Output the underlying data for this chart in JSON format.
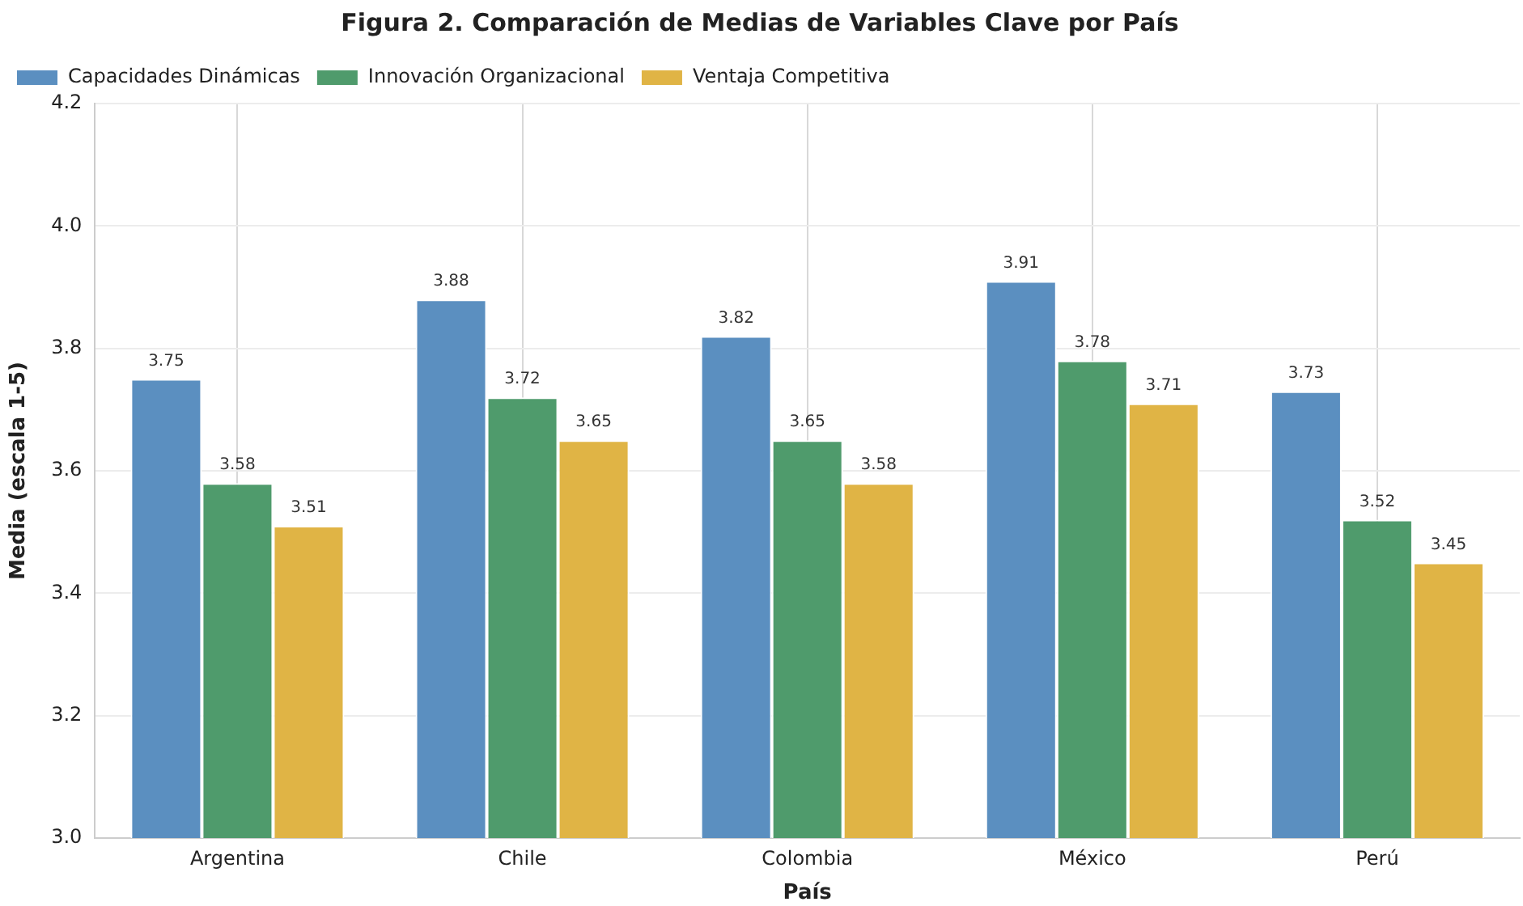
{
  "chart_data": {
    "type": "bar",
    "title": "Figura 2. Comparación de Medias de Variables Clave por País",
    "xlabel": "País",
    "ylabel": "Media (escala 1-5)",
    "categories": [
      "Argentina",
      "Chile",
      "Colombia",
      "México",
      "Perú"
    ],
    "series": [
      {
        "name": "Capacidades Dinámicas",
        "color": "#5b8fc0",
        "values": [
          3.75,
          3.88,
          3.82,
          3.91,
          3.73
        ]
      },
      {
        "name": "Innovación Organizacional",
        "color": "#4f9b6c",
        "values": [
          3.58,
          3.72,
          3.65,
          3.78,
          3.52
        ]
      },
      {
        "name": "Ventaja Competitiva",
        "color": "#e0b445",
        "values": [
          3.51,
          3.65,
          3.58,
          3.71,
          3.45
        ]
      }
    ],
    "ylim": [
      3.0,
      4.2
    ],
    "yticks": [
      {
        "value": 3.0,
        "label": "3.0"
      },
      {
        "value": 3.2,
        "label": "3.2"
      },
      {
        "value": 3.4,
        "label": "3.4"
      },
      {
        "value": 3.6,
        "label": "3.6"
      },
      {
        "value": 3.8,
        "label": "3.8"
      },
      {
        "value": 4.0,
        "label": "4.0"
      },
      {
        "value": 4.2,
        "label": "4.2"
      }
    ],
    "grid": true,
    "legend": "top left",
    "data_labels": true
  }
}
